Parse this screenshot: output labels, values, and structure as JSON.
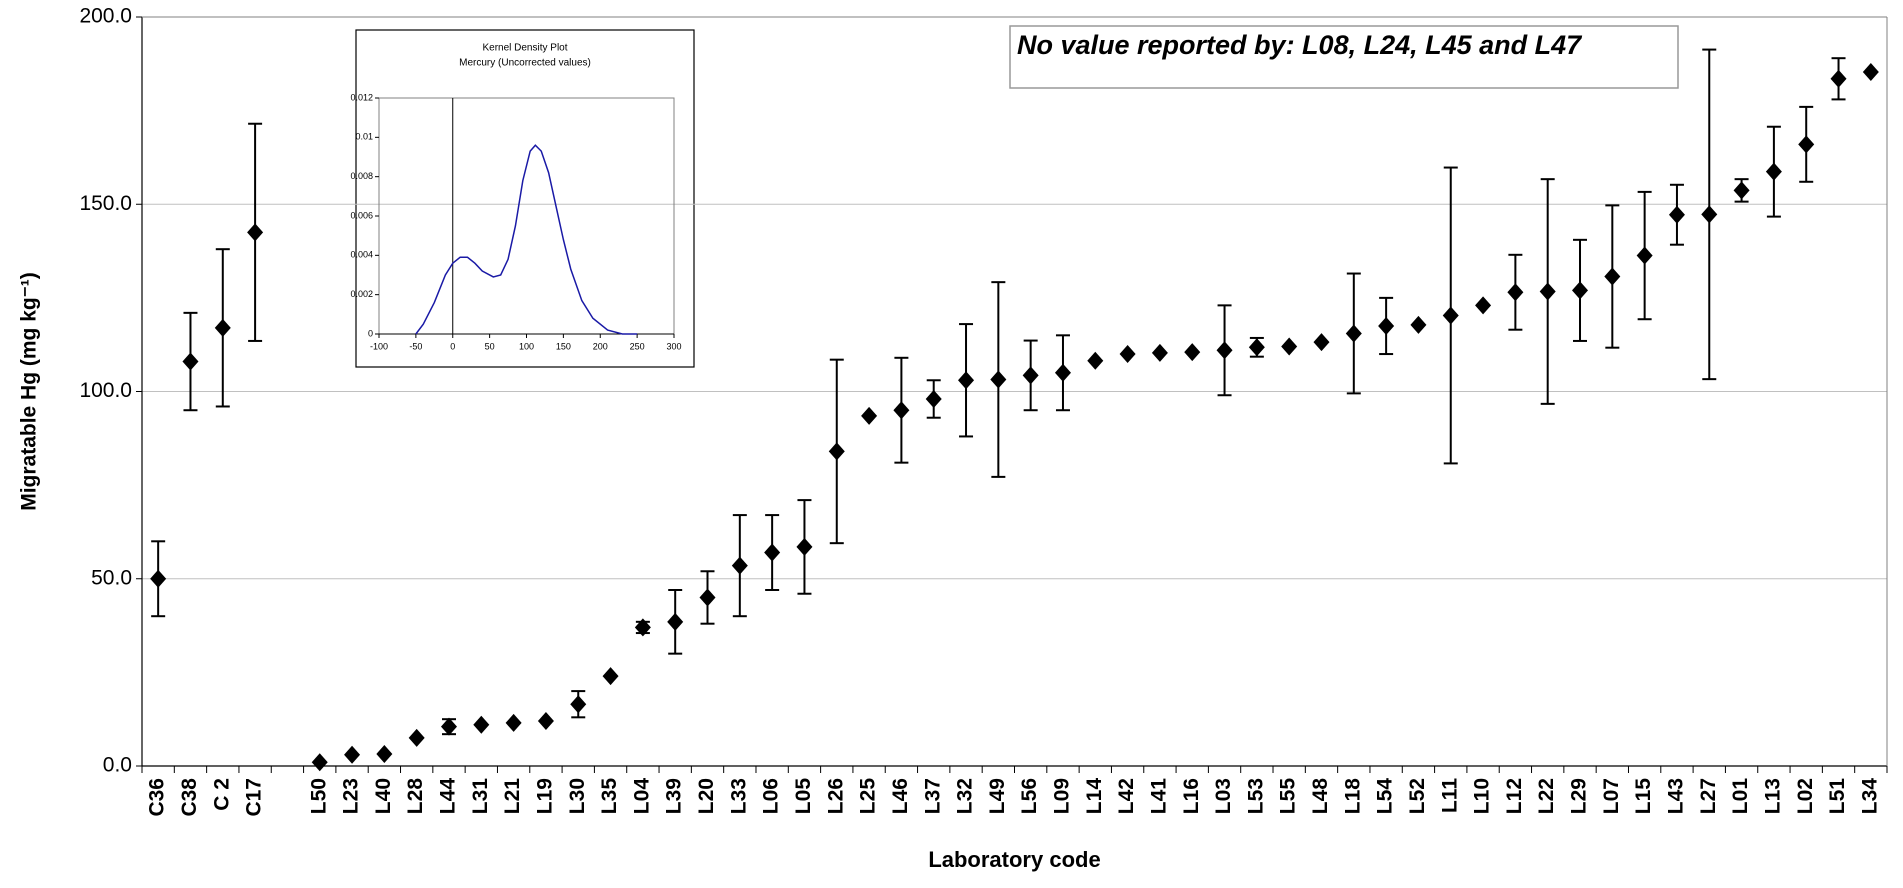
{
  "chart_data": [
    {
      "type": "errorbar",
      "y_label": "Migratable Hg (mg kg⁻¹)",
      "x_label": "Laboratory code",
      "annotation": "No value reported by: L08, L24, L45 and L47",
      "categories": [
        "C36",
        "C38",
        "C 2",
        "C17",
        null,
        "L50",
        "L23",
        "L40",
        "L28",
        "L44",
        "L31",
        "L21",
        "L19",
        "L30",
        "L35",
        "L04",
        "L39",
        "L20",
        "L33",
        "L06",
        "L05",
        "L26",
        "L25",
        "L46",
        "L37",
        "L32",
        "L49",
        "L56",
        "L09",
        "L14",
        "L42",
        "L41",
        "L16",
        "L03",
        "L53",
        "L55",
        "L48",
        "L18",
        "L54",
        "L52",
        "L11",
        "L10",
        "L12",
        "L22",
        "L29",
        "L07",
        "L15",
        "L43",
        "L27",
        "L01",
        "L13",
        "L02",
        "L51",
        "L34"
      ],
      "series": [
        {
          "color": "#000000",
          "values": [
            50,
            108,
            117,
            142.5,
            null,
            1,
            3,
            3.2,
            7.5,
            10.5,
            11,
            11.5,
            12,
            16.5,
            24,
            37,
            38.5,
            45,
            53.5,
            57,
            58.5,
            84,
            93.5,
            95,
            98,
            103,
            103.2,
            104.3,
            105,
            108.2,
            110,
            110.3,
            110.5,
            111,
            111.8,
            112,
            113.2,
            115.5,
            117.5,
            117.8,
            120.3,
            123,
            126.5,
            126.7,
            127,
            130.7,
            136.3,
            147.2,
            147.3,
            153.7,
            158.7,
            166,
            183.5,
            185.3
          ],
          "errors": [
            10,
            13,
            21,
            29,
            null,
            null,
            null,
            null,
            null,
            2,
            null,
            null,
            null,
            3.5,
            null,
            1.5,
            8.5,
            7,
            13.5,
            10,
            12.5,
            24.5,
            null,
            14,
            5,
            15,
            26,
            9.3,
            10,
            null,
            null,
            null,
            null,
            12,
            2.5,
            null,
            null,
            16,
            7.5,
            null,
            39.5,
            null,
            10,
            30,
            13.5,
            19,
            17,
            8,
            44,
            3,
            12,
            10,
            5.5,
            null
          ]
        }
      ],
      "ylim": [
        0,
        200
      ],
      "yticks": [
        {
          "value": 0,
          "label": "0.0"
        },
        {
          "value": 50,
          "label": "50.0"
        },
        {
          "value": 100,
          "label": "100.0"
        },
        {
          "value": 150,
          "label": "150.0"
        },
        {
          "value": 200,
          "label": "200.0"
        }
      ],
      "grid": true
    },
    {
      "type": "line",
      "title": "Kernel Density Plot",
      "subtitle": "Mercury (Uncorrected values)",
      "x": [
        -50,
        -40,
        -25,
        -10,
        0,
        10,
        20,
        30,
        40,
        55,
        65,
        75,
        85,
        95,
        105,
        112,
        120,
        130,
        140,
        150,
        160,
        175,
        190,
        210,
        230,
        250
      ],
      "series": [
        {
          "color": "#1a1aa6",
          "values": [
            0,
            0.0005,
            0.0016,
            0.003,
            0.0036,
            0.0039,
            0.0039,
            0.0036,
            0.0032,
            0.0029,
            0.003,
            0.0038,
            0.0055,
            0.0078,
            0.0093,
            0.0096,
            0.0093,
            0.0082,
            0.0065,
            0.0048,
            0.0033,
            0.0017,
            0.0008,
            0.0002,
            0,
            0
          ]
        }
      ],
      "xlim": [
        -100,
        300
      ],
      "xticks": [
        -100,
        -50,
        0,
        50,
        100,
        150,
        200,
        250,
        300
      ],
      "ylim": [
        0,
        0.012
      ],
      "yticks": [
        0,
        0.002,
        0.004,
        0.006,
        0.008,
        0.01,
        0.012
      ]
    }
  ]
}
